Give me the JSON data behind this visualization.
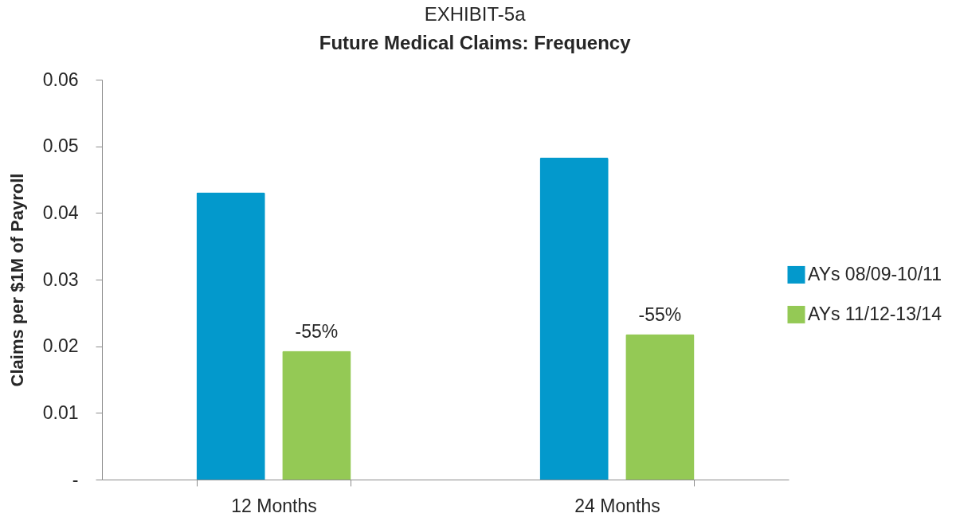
{
  "chart_data": {
    "type": "bar",
    "title": "EXHIBIT-5a",
    "subtitle": "Future Medical Claims: Frequency",
    "ylabel": "Claims per $1M of Payroll",
    "categories": [
      "12 Months",
      "24 Months"
    ],
    "series": [
      {
        "name": "AYs 08/09-10/11",
        "color": "#0399cc",
        "values": [
          0.0431,
          0.0483
        ]
      },
      {
        "name": "AYs 11/12-13/14",
        "color": "#94c955",
        "values": [
          0.0193,
          0.0218
        ]
      }
    ],
    "ylim": [
      0,
      0.06
    ],
    "yticks": [
      {
        "value": 0,
        "label": "-"
      },
      0.01,
      0.02,
      0.03,
      0.04,
      0.05,
      0.06
    ],
    "grid": false,
    "legend": "right",
    "annotations": [
      "-55%",
      "-55%"
    ]
  }
}
